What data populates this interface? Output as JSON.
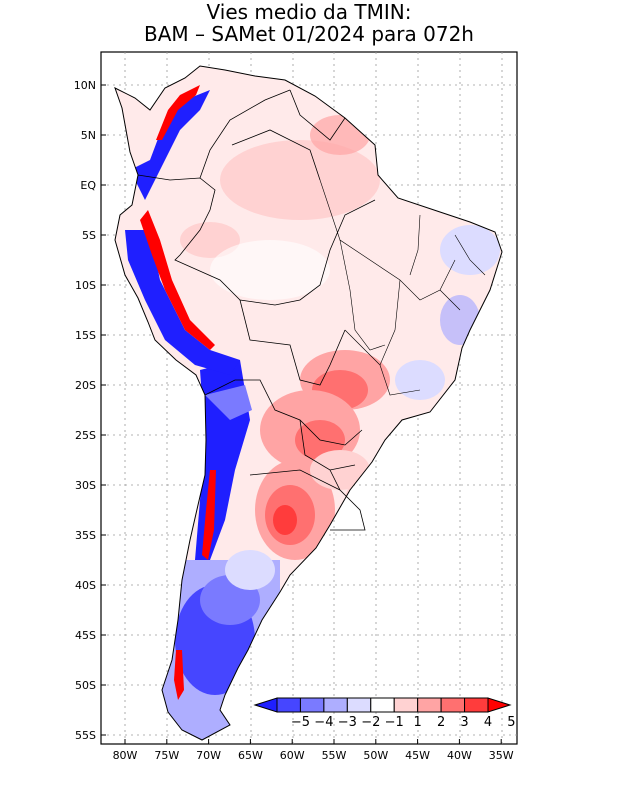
{
  "title": {
    "line1": "Vies medio da TMIN:",
    "line2": "BAM – SAMet 01/2024  para 072h"
  },
  "axes": {
    "lon_labels": [
      "80W",
      "75W",
      "70W",
      "65W",
      "60W",
      "55W",
      "50W",
      "45W",
      "40W",
      "35W"
    ],
    "lat_labels": [
      "10N",
      "5N",
      "EQ",
      "5S",
      "10S",
      "15S",
      "20S",
      "25S",
      "30S",
      "35S",
      "40S",
      "45S",
      "50S",
      "55S"
    ]
  },
  "colorbar": {
    "labels": [
      "−5",
      "−4",
      "−3",
      "−2",
      "−1",
      "1",
      "2",
      "3",
      "4",
      "5"
    ],
    "colors": [
      "#1f1fff",
      "#4646ff",
      "#7a7aff",
      "#aeaeff",
      "#dcdcff",
      "#ffffff",
      "#ffd2d2",
      "#ffa4a4",
      "#ff7070",
      "#ff3c3c",
      "#ff0000"
    ]
  },
  "map": {
    "region": "South America",
    "variable": "Mean bias of minimum temperature (TMIN)"
  }
}
